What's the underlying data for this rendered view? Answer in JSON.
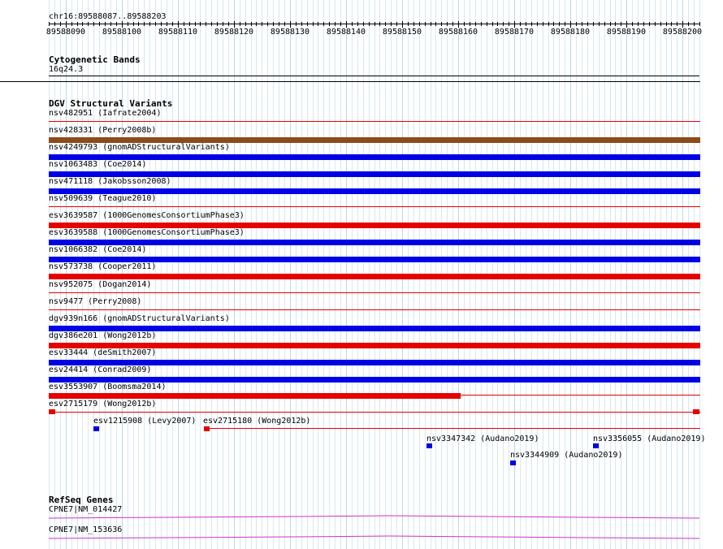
{
  "ruler": {
    "range_label": "chr16:89588087..89588203",
    "start": 89588087,
    "end": 89588203,
    "tick_labels": [
      "89588090",
      "89588100",
      "89588110",
      "89588120",
      "89588130",
      "89588140",
      "89588150",
      "89588160",
      "89588170",
      "89588180",
      "89588190",
      "89588200"
    ]
  },
  "cytoband": {
    "title": "Cytogenetic Bands",
    "band": "16q24.3"
  },
  "dgv": {
    "title": "DGV Structural Variants",
    "colors": {
      "brown": "#8b4c1a",
      "blue": "#0000e6",
      "red": "#e60000"
    },
    "features": [
      {
        "label": "nsv482951 (Iafrate2004)",
        "color": "red",
        "full": false
      },
      {
        "label": "nsv428331 (Perry2008b)",
        "color": "brown",
        "full": true
      },
      {
        "label": "nsv4249793 (gnomADStructuralVariants)",
        "color": "blue",
        "full": true
      },
      {
        "label": "nsv1063483 (Coe2014)",
        "color": "blue",
        "full": true
      },
      {
        "label": "nsv471118 (Jakobsson2008)",
        "color": "blue",
        "full": true
      },
      {
        "label": "nsv509639 (Teague2010)",
        "color": "red",
        "full": false
      },
      {
        "label": "esv3639587 (1000GenomesConsortiumPhase3)",
        "color": "red",
        "full": true
      },
      {
        "label": "esv3639588 (1000GenomesConsortiumPhase3)",
        "color": "blue",
        "full": true
      },
      {
        "label": "nsv1066382 (Coe2014)",
        "color": "blue",
        "full": true
      },
      {
        "label": "nsv573738 (Cooper2011)",
        "color": "red",
        "full": true
      },
      {
        "label": "nsv952075 (Dogan2014)",
        "color": "red",
        "full": false
      },
      {
        "label": "nsv9477 (Perry2008)",
        "color": "red",
        "full": false
      },
      {
        "label": "dgv939n166 (gnomADStructuralVariants)",
        "color": "blue",
        "full": true
      },
      {
        "label": "dgv386e201 (Wong2012b)",
        "color": "red",
        "full": true
      },
      {
        "label": "esv33444 (deSmith2007)",
        "color": "blue",
        "full": true
      },
      {
        "label": "esv24414 (Conrad2009)",
        "color": "blue",
        "full": true
      },
      {
        "label": "esv3553907 (Boomsma2014)",
        "color": "red",
        "full": false
      },
      {
        "label": "esv2715179 (Wong2012b)",
        "color": "red",
        "full": false
      }
    ],
    "small_features": [
      {
        "label": "esv1215908 (Levy2007)",
        "color": "blue"
      },
      {
        "label": "esv2715180 (Wong2012b)",
        "color": "red"
      },
      {
        "label": "nsv3347342 (Audano2019)",
        "color": "blue"
      },
      {
        "label": "nsv3356055 (Audano2019)",
        "color": "blue"
      },
      {
        "label": "nsv3344909 (Audano2019)",
        "color": "blue"
      }
    ]
  },
  "refseq": {
    "title": "RefSeq Genes",
    "color": "#cc33cc",
    "genes": [
      {
        "label": "CPNE7|NM_014427"
      },
      {
        "label": "CPNE7|NM_153636"
      }
    ]
  }
}
